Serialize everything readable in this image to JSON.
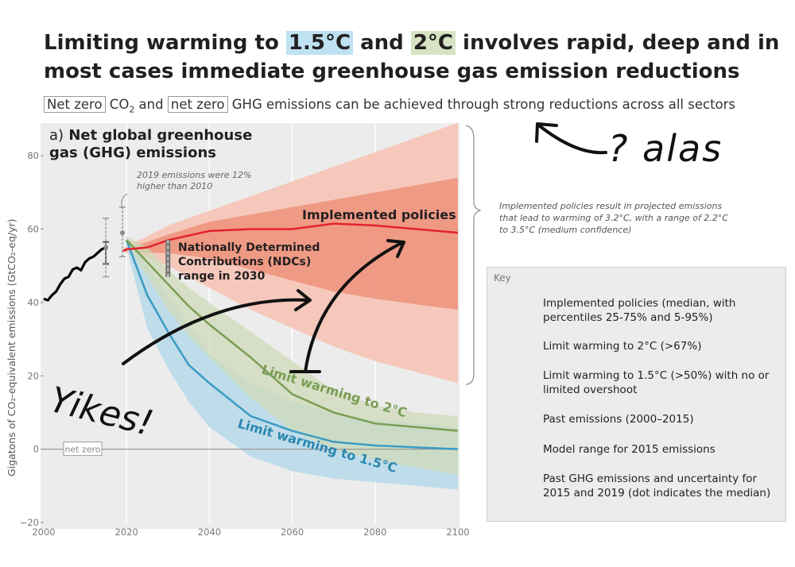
{
  "headline": {
    "part1": "Limiting warming to ",
    "hl1": "1.5°C",
    "part2": " and ",
    "hl2": "2°C",
    "part3": " involves rapid, deep and in most cases immediate greenhouse gas emission reductions"
  },
  "subline": {
    "box1": "Net zero",
    "t1": " CO",
    "sub": "2",
    "t2": " and ",
    "box2": "net zero",
    "t3": " GHG emissions can be achieved through strong reductions across all sectors"
  },
  "panel": {
    "letter": "a)",
    "title": "Net global greenhouse gas (GHG) emissions"
  },
  "notes": {
    "emissions_2019": "2019 emissions were 12% higher than 2010",
    "implemented": "Implemented policies result in projected emissions that lead to warming of 3.2°C, with a range of 2.2°C to 3.5°C (medium confidence)"
  },
  "labels": {
    "implemented": "Implemented policies",
    "ndc": "Nationally Determined Contributions (NDCs) range in 2030",
    "limit2": "Limit warming to 2°C",
    "limit15": "Limit warming to 1.5°C",
    "net_zero": "net zero"
  },
  "key": {
    "title": "Key",
    "items": [
      "Implemented policies (median, with percentiles 25-75% and 5-95%)",
      "Limit warming to 2°C (>67%)",
      "Limit warming to 1.5°C (>50%) with no or limited overshoot",
      "Past emissions (2000–2015)",
      "Model range for 2015 emissions",
      "Past GHG emissions and uncertainty for 2015 and 2019 (dot indicates the median)"
    ]
  },
  "handwriting": {
    "question": "? alas",
    "yikes": "Yikes!"
  },
  "colors": {
    "red": "#e2242b",
    "red_outer": "#f5c6b8",
    "red_inner": "#ee9580",
    "green": "#7a9d54",
    "green_band": "#cfdbb8",
    "blue": "#3b9bc4",
    "blue_band": "#b6d9ea",
    "panel_bg": "#ececec"
  },
  "chart_data": {
    "type": "area",
    "title": "Net global greenhouse gas (GHG) emissions",
    "xlabel": "",
    "ylabel": "Gigatons of CO₂-equivalent emissions (GtCO₂-eq/yr)",
    "xlim": [
      2000,
      2100
    ],
    "ylim": [
      -20,
      90
    ],
    "xticks": [
      2000,
      2020,
      2040,
      2060,
      2080,
      2100
    ],
    "yticks": [
      -20,
      0,
      20,
      40,
      60,
      80
    ],
    "yticks_display": [
      "−20",
      "0",
      "20",
      "40",
      "60",
      "80"
    ],
    "grid": true,
    "past": {
      "name": "Past emissions (2000–2015)",
      "x": [
        2000,
        2001,
        2002,
        2003,
        2004,
        2005,
        2006,
        2007,
        2008,
        2009,
        2010,
        2011,
        2012,
        2013,
        2014,
        2015
      ],
      "y": [
        41,
        40.6,
        42,
        43,
        45,
        46.5,
        47,
        49,
        49.5,
        48.8,
        51,
        52,
        52.5,
        53.5,
        54.5,
        55
      ]
    },
    "model_range_2015": [
      50.5,
      56.5
    ],
    "past_uncertainty": [
      {
        "year": 2015,
        "median": 55,
        "low": 47,
        "high": 63
      },
      {
        "year": 2019,
        "median": 59,
        "low": 52.5,
        "high": 66
      }
    ],
    "ndc_range_2030": [
      47,
      57
    ],
    "series": [
      {
        "name": "Implemented policies",
        "x": [
          2019,
          2020,
          2025,
          2030,
          2040,
          2050,
          2060,
          2070,
          2080,
          2090,
          2100
        ],
        "median": [
          54,
          54.5,
          55,
          57,
          59.5,
          60,
          60,
          61.5,
          61,
          60,
          59
        ],
        "p25": [
          54,
          54,
          53.5,
          53.5,
          52,
          49,
          46,
          43,
          41,
          39.5,
          38
        ],
        "p75": [
          54,
          55,
          56.5,
          58.5,
          62,
          64,
          66,
          68,
          70,
          72,
          74
        ],
        "p5": [
          54,
          53.5,
          52,
          50,
          44,
          38,
          33,
          28,
          24,
          21,
          18
        ],
        "p95": [
          54,
          55.5,
          58,
          61,
          65,
          69,
          73,
          77,
          81,
          85,
          89
        ]
      },
      {
        "name": "Limit warming to 2°C",
        "x": [
          2020,
          2025,
          2030,
          2035,
          2040,
          2050,
          2060,
          2070,
          2080,
          2090,
          2100
        ],
        "median": [
          57,
          51,
          45,
          39,
          34,
          25,
          15,
          10,
          7,
          6,
          5
        ],
        "low": [
          56,
          47,
          38,
          31,
          25,
          14,
          5,
          0,
          -3,
          -5,
          -7
        ],
        "high": [
          58,
          55,
          49,
          44,
          40,
          32,
          24,
          16,
          12,
          10,
          9
        ]
      },
      {
        "name": "Limit warming to 1.5°C",
        "x": [
          2020,
          2025,
          2030,
          2035,
          2040,
          2050,
          2060,
          2070,
          2080,
          2090,
          2100
        ],
        "median": [
          57,
          42,
          32,
          23,
          18,
          9,
          5,
          2,
          1,
          0.5,
          0
        ],
        "low": [
          55,
          33,
          22,
          13,
          6,
          -2,
          -6,
          -8,
          -9,
          -10,
          -11
        ],
        "high": [
          58,
          50,
          42,
          34,
          26,
          18,
          13,
          10,
          8,
          7,
          6
        ]
      }
    ]
  }
}
